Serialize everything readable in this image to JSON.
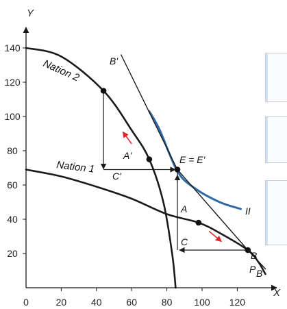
{
  "chart_data": {
    "type": "line",
    "title": "",
    "xlabel": "X",
    "ylabel": "Y",
    "xlim": [
      0,
      140
    ],
    "ylim": [
      0,
      150
    ],
    "x_ticks": [
      "0",
      "20",
      "40",
      "60",
      "80",
      "100",
      "120"
    ],
    "y_ticks": [
      "20",
      "40",
      "60",
      "80",
      "100",
      "120",
      "140"
    ],
    "series": [
      {
        "name": "Nation 1",
        "points": [
          [
            0,
            69
          ],
          [
            20,
            65
          ],
          [
            40,
            59
          ],
          [
            60,
            52
          ],
          [
            80,
            43
          ],
          [
            98,
            38
          ],
          [
            110,
            32
          ],
          [
            126,
            22
          ],
          [
            132,
            15
          ],
          [
            136,
            8
          ]
        ]
      },
      {
        "name": "Nation 2",
        "points": [
          [
            0,
            140
          ],
          [
            20,
            135
          ],
          [
            44,
            115
          ],
          [
            60,
            92
          ],
          [
            70,
            75
          ],
          [
            78,
            50
          ],
          [
            83,
            20
          ],
          [
            85,
            0
          ]
        ]
      },
      {
        "name": "II",
        "points": [
          [
            70,
            103
          ],
          [
            76,
            92
          ],
          [
            86,
            68
          ],
          [
            96,
            58
          ],
          [
            110,
            50
          ],
          [
            122,
            46
          ]
        ]
      },
      {
        "name": "P_B",
        "points": [
          [
            54,
            136
          ],
          [
            86,
            69
          ],
          [
            126,
            22
          ],
          [
            136,
            11
          ]
        ]
      }
    ],
    "points": [
      {
        "label": "B'",
        "x": 44,
        "y": 115
      },
      {
        "label": "A'",
        "x": 70,
        "y": 75
      },
      {
        "label": "E = E'",
        "x": 86,
        "y": 69
      },
      {
        "label": "A",
        "x": 98,
        "y": 38
      },
      {
        "label": "B",
        "x": 126,
        "y": 22
      }
    ],
    "annotations": [
      "B'",
      "A'",
      "C'",
      "E = E'",
      "A",
      "C",
      "B",
      "II",
      "P",
      "B"
    ],
    "trade_triangles": [
      {
        "vertex_top": "B'",
        "corner": "C'",
        "end": "E"
      },
      {
        "vertex_top": "E",
        "corner": "C",
        "end": "B"
      }
    ],
    "colors": {
      "curves": "#1a1a1a",
      "indifference": "#2f6aa6",
      "arrows": "#e0252a"
    }
  },
  "panels": [
    {
      "name": "side-panel-1"
    },
    {
      "name": "side-panel-2"
    },
    {
      "name": "side-panel-3"
    }
  ]
}
